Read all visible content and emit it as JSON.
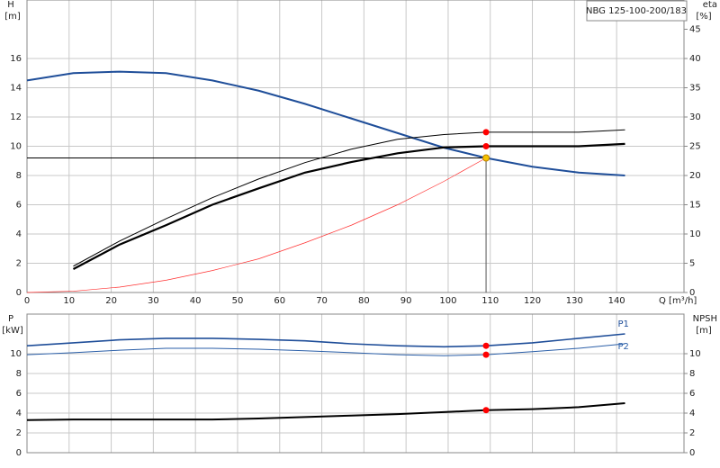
{
  "chart_data": [
    {
      "type": "line",
      "annotation": "NBG 125-100-200/183",
      "ylabel": "H",
      "yunit": "[m]",
      "y2label": "eta",
      "y2unit": "[%]",
      "xlabel": "Q [m³/h]",
      "xlim": [
        0,
        156
      ],
      "xticks": [
        0,
        10,
        20,
        30,
        40,
        50,
        60,
        70,
        80,
        90,
        100,
        110,
        120,
        130,
        140
      ],
      "ylim": [
        0,
        20
      ],
      "yticks": [
        0,
        2,
        4,
        6,
        8,
        10,
        12,
        14,
        16
      ],
      "y2lim": [
        0,
        50
      ],
      "y2ticks": [
        0,
        5,
        10,
        15,
        20,
        25,
        30,
        35,
        40,
        45
      ],
      "grid": true,
      "x": [
        0,
        11,
        22,
        33,
        44,
        55,
        66,
        77,
        88,
        99,
        109,
        120,
        131,
        142
      ],
      "series": [
        {
          "color": "#1f4e99",
          "width": 2,
          "values": [
            14.5,
            15.0,
            15.1,
            15.0,
            14.5,
            13.8,
            12.9,
            11.9,
            10.9,
            9.9,
            9.2,
            8.6,
            8.2,
            8.0
          ]
        },
        {
          "color": "#000000",
          "width": 2.2,
          "axis": "y2",
          "values": [
            null,
            4,
            8.2,
            11.5,
            15,
            17.8,
            20.5,
            22.3,
            23.8,
            24.8,
            25,
            25,
            25,
            25.4
          ]
        },
        {
          "color": "#000000",
          "width": 1,
          "axis": "y2",
          "values": [
            null,
            4.5,
            8.8,
            12.6,
            16.2,
            19.4,
            22.2,
            24.5,
            26.2,
            27,
            27.4,
            27.4,
            27.4,
            27.8
          ]
        },
        {
          "color": "#ff3030",
          "width": 0.7,
          "values": [
            0,
            0.09,
            0.37,
            0.84,
            1.5,
            2.3,
            3.4,
            4.6,
            6.0,
            7.6,
            9.2,
            null,
            null,
            null
          ]
        }
      ],
      "markers": [
        {
          "x": 109,
          "y": 9.2,
          "color": "#f5c400",
          "guide": true
        },
        {
          "x": 109,
          "y": 25,
          "axis": "y2",
          "color": "#ff0000"
        },
        {
          "x": 109,
          "y": 27.4,
          "axis": "y2",
          "color": "#ff0000"
        }
      ]
    },
    {
      "type": "line",
      "ylabel": "P",
      "yunit": "[kW]",
      "y2label": "NPSH",
      "y2unit": "[m]",
      "xlim": [
        0,
        156
      ],
      "xticks": [
        0,
        10,
        20,
        30,
        40,
        50,
        60,
        70,
        80,
        90,
        100,
        110,
        120,
        130,
        140
      ],
      "ylim": [
        0,
        14
      ],
      "yticks": [
        0,
        2,
        4,
        6,
        8,
        10
      ],
      "y2lim": [
        0,
        14
      ],
      "y2ticks": [
        0,
        2,
        4,
        6,
        8,
        10
      ],
      "grid": true,
      "x": [
        0,
        11,
        22,
        33,
        44,
        55,
        66,
        77,
        88,
        99,
        109,
        120,
        131,
        142
      ],
      "series": [
        {
          "name": "P1",
          "color": "#1f4e99",
          "width": 1.6,
          "values": [
            10.8,
            11.1,
            11.4,
            11.55,
            11.55,
            11.45,
            11.3,
            11.0,
            10.8,
            10.7,
            10.8,
            11.1,
            11.55,
            12.0
          ]
        },
        {
          "name": "P2",
          "color": "#2b5fa8",
          "width": 1,
          "values": [
            9.9,
            10.1,
            10.35,
            10.55,
            10.55,
            10.45,
            10.3,
            10.1,
            9.9,
            9.8,
            9.9,
            10.2,
            10.55,
            11.0
          ]
        },
        {
          "color": "#000000",
          "width": 2,
          "axis": "y2",
          "values": [
            3.3,
            3.35,
            3.35,
            3.35,
            3.35,
            3.45,
            3.6,
            3.75,
            3.9,
            4.1,
            4.3,
            4.4,
            4.6,
            5.0
          ]
        }
      ],
      "markers": [
        {
          "x": 109,
          "y": 10.8,
          "color": "#ff0000"
        },
        {
          "x": 109,
          "y": 9.9,
          "color": "#ff0000"
        },
        {
          "x": 109,
          "y": 4.3,
          "axis": "y2",
          "color": "#ff0000"
        }
      ]
    }
  ]
}
